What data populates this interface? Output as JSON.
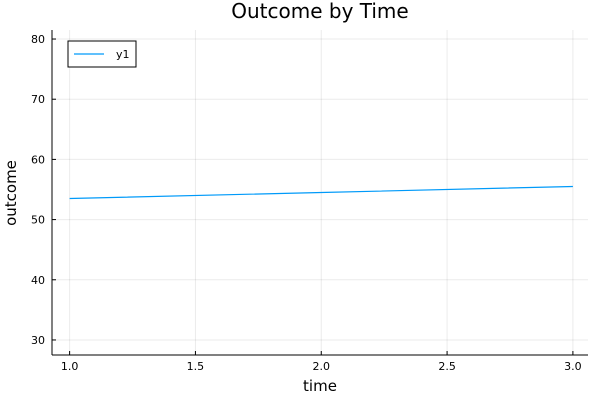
{
  "chart_data": {
    "type": "line",
    "title": "Outcome by Time",
    "xlabel": "time",
    "ylabel": "outcome",
    "xlim": [
      0.93,
      3.06
    ],
    "ylim": [
      27.5,
      81.5
    ],
    "xticks": [
      1.0,
      1.5,
      2.0,
      2.5,
      3.0
    ],
    "xtick_labels": [
      "1.0",
      "1.5",
      "2.0",
      "2.5",
      "3.0"
    ],
    "yticks": [
      30,
      40,
      50,
      60,
      70,
      80
    ],
    "ytick_labels": [
      "30",
      "40",
      "50",
      "60",
      "70",
      "80"
    ],
    "grid": true,
    "legend_position": "top-left",
    "series": [
      {
        "name": "y1",
        "color": "#009af9",
        "x": [
          1.0,
          2.0,
          3.0
        ],
        "y": [
          53.5,
          54.5,
          55.5
        ]
      }
    ]
  }
}
